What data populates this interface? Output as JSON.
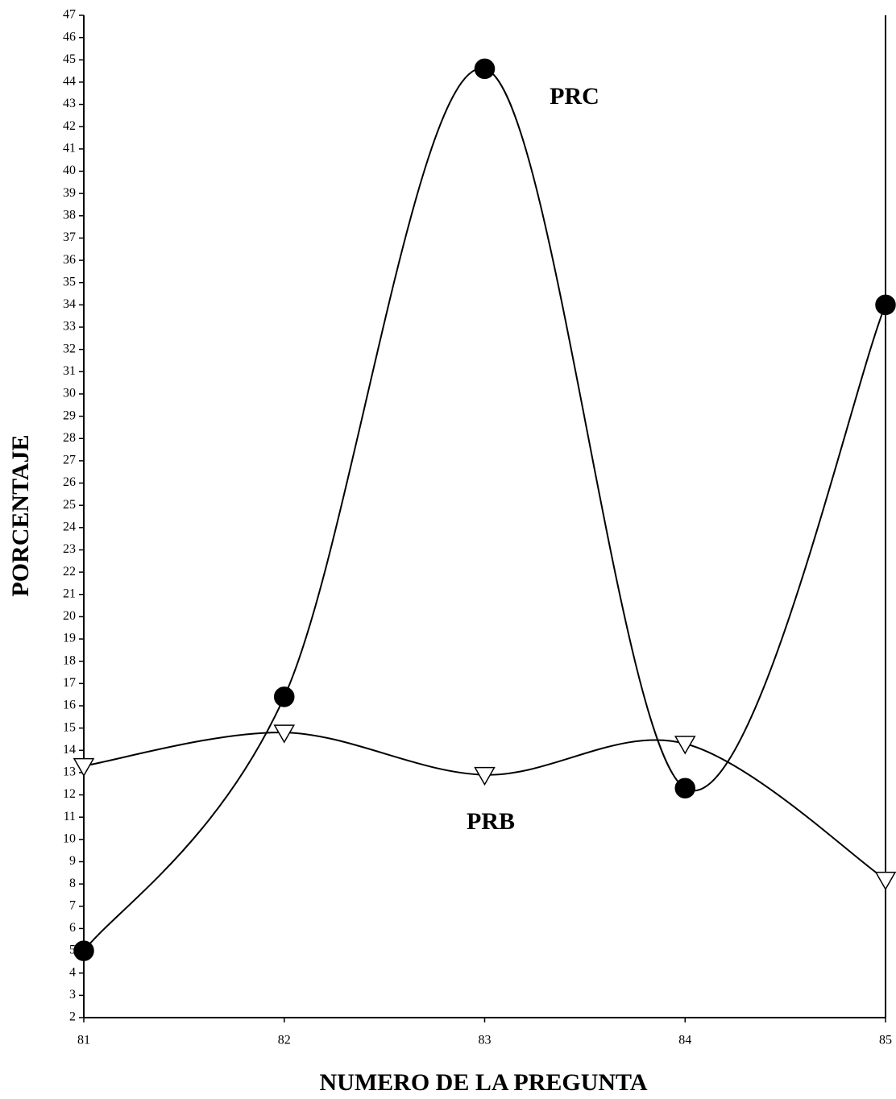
{
  "chart_data": {
    "type": "line",
    "x_label": "NUMERO DE LA PREGUNTA",
    "y_label": "PORCENTAJE",
    "x": [
      81,
      82,
      83,
      84,
      85
    ],
    "series": [
      {
        "name": "PRC",
        "color": "#000000",
        "marker": "circle",
        "values": [
          5.0,
          16.4,
          44.6,
          12.3,
          34.0
        ]
      },
      {
        "name": "PRB",
        "color": "#000000",
        "marker": "triangle-down",
        "values": [
          13.3,
          14.8,
          12.9,
          14.3,
          8.2
        ]
      }
    ],
    "xlim": [
      81,
      85
    ],
    "xticks": [
      81,
      82,
      83,
      84,
      85
    ],
    "ylim": [
      2,
      47
    ],
    "yticks": [
      2,
      3,
      4,
      5,
      6,
      7,
      8,
      9,
      10,
      11,
      12,
      13,
      14,
      15,
      16,
      17,
      18,
      19,
      20,
      21,
      22,
      23,
      24,
      25,
      26,
      27,
      28,
      29,
      30,
      31,
      32,
      33,
      34,
      35,
      36,
      37,
      38,
      39,
      40,
      41,
      42,
      43,
      44,
      45,
      46,
      47
    ],
    "smooth": true,
    "grid": false
  }
}
